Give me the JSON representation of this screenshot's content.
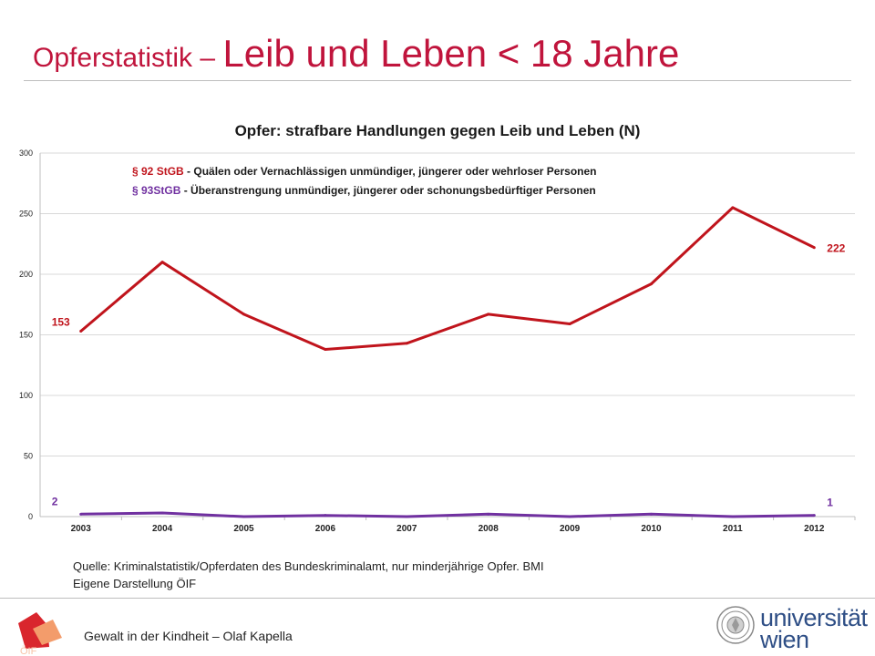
{
  "title": {
    "part1": "Opferstatistik",
    "dash": "–",
    "part2": "Leib und Leben < 18 Jahre"
  },
  "chart_data": {
    "type": "line",
    "title": "Opfer: strafbare Handlungen gegen Leib und Leben (N)",
    "categories": [
      "2003",
      "2004",
      "2005",
      "2006",
      "2007",
      "2008",
      "2009",
      "2010",
      "2011",
      "2012"
    ],
    "ylim": [
      0,
      300
    ],
    "yticks": [
      0,
      50,
      100,
      150,
      200,
      250,
      300
    ],
    "grid": true,
    "series": [
      {
        "name": "§ 92 StGB",
        "description": "Quälen oder Vernachlässigen unmündiger, jüngerer oder wehrloser Personen",
        "color": "#c0141c",
        "values": [
          153,
          210,
          167,
          138,
          143,
          167,
          159,
          192,
          255,
          222
        ],
        "start_label": "153",
        "end_label": "222"
      },
      {
        "name": "§ 93StGB",
        "description": "Überanstrengung unmündiger, jüngerer oder schonungsbedürftiger Personen",
        "color": "#7030a0",
        "values": [
          2,
          3,
          0,
          1,
          0,
          2,
          0,
          2,
          0,
          1
        ],
        "start_label": "2",
        "end_label": "1"
      }
    ],
    "legend_placement": "top"
  },
  "source": {
    "line1": "Quelle: Kriminalstatistik/Opferdaten des Bundeskriminalamt, nur minderjährige Opfer. BMI",
    "line2": "Eigene Darstellung ÖIF"
  },
  "footer": {
    "text": "Gewalt in der Kindheit – Olaf Kapella",
    "uni_line1": "universität",
    "uni_line2": "wien",
    "oif_logo": "ÖIF"
  },
  "colors": {
    "title": "#c0143c",
    "grid": "#d9d9d9",
    "uni_blue": "#2f4f86",
    "oif_red": "#d9262d",
    "oif_orange": "#f39c6b"
  }
}
